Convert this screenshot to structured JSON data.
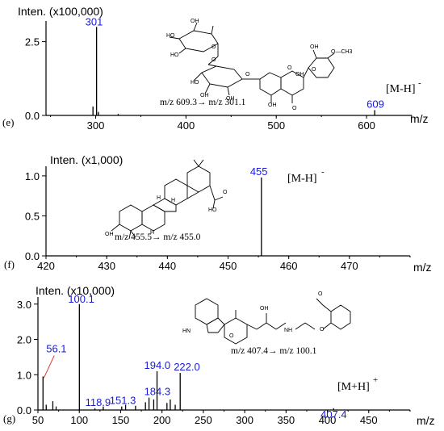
{
  "panels": [
    {
      "id": "e",
      "panel_letter": "(e)",
      "intensity_label": "Inten. (x100,000)",
      "x_unit": "m/z",
      "transition": "m/z 609.3→ m/z 301.1",
      "ion_label": "[M-H]",
      "ion_charge": "-"
    },
    {
      "id": "f",
      "panel_letter": "(f)",
      "intensity_label": "Inten. (x1,000)",
      "x_unit": "m/z",
      "transition": "m/z 455.5→ m/z 455.0",
      "ion_label": "[M-H]",
      "ion_charge": "-"
    },
    {
      "id": "g",
      "panel_letter": "(g)",
      "intensity_label": "Inten. (x10,000)",
      "x_unit": "m/z",
      "transition": "m/z 407.4→ m/z 100.1",
      "ion_label": "[M+H]",
      "ion_charge": "+"
    }
  ],
  "molecule_text": {
    "e": [
      "HO",
      "OH",
      "HO",
      "O",
      "O",
      "HO",
      "OH",
      "OH",
      "O",
      "O",
      "OH",
      "O",
      "OH",
      "O—CH3",
      "O",
      "OH"
    ],
    "f": [
      "H",
      "H",
      "H",
      "OH",
      "O",
      "HO"
    ],
    "g": [
      "HN",
      "O",
      "OH",
      "NH",
      "O",
      "O"
    ]
  },
  "chart_data": [
    {
      "type": "bar",
      "panel": "e",
      "xlabel": "m/z",
      "ylabel": "Inten. (x100,000)",
      "xlim": [
        245,
        650
      ],
      "ylim": [
        0,
        3.2
      ],
      "xticks": [
        300,
        400,
        500,
        600
      ],
      "yticks": [
        0.0,
        2.5
      ],
      "ytick_labels": [
        "0.0",
        "2.5"
      ],
      "peaks": [
        {
          "x": 301,
          "y": 3.0,
          "label": "301"
        },
        {
          "x": 297,
          "y": 0.3
        },
        {
          "x": 303,
          "y": 0.12
        },
        {
          "x": 325,
          "y": 0.05
        },
        {
          "x": 609,
          "y": 0.18,
          "label": "609"
        }
      ]
    },
    {
      "type": "bar",
      "panel": "f",
      "xlabel": "m/z",
      "ylabel": "Inten. (x1,000)",
      "xlim": [
        420,
        480
      ],
      "ylim": [
        0,
        1.12
      ],
      "xticks": [
        420,
        430,
        440,
        450,
        460,
        470
      ],
      "yticks": [
        0.0,
        0.5,
        1.0
      ],
      "ytick_labels": [
        "0.0",
        "0.5",
        "1.0"
      ],
      "peaks": [
        {
          "x": 455.5,
          "y": 0.98,
          "label": "455"
        }
      ]
    },
    {
      "type": "bar",
      "panel": "g",
      "xlabel": "m/z",
      "ylabel": "Inten. (x10,000)",
      "xlim": [
        50,
        500
      ],
      "ylim": [
        0,
        3.2
      ],
      "xticks": [
        50,
        100,
        150,
        200,
        250,
        300,
        350,
        400,
        450
      ],
      "yticks": [
        0.0,
        1.0,
        2.0,
        3.0
      ],
      "ytick_labels": [
        "0.0",
        "1.0",
        "2.0",
        "3.0"
      ],
      "peaks": [
        {
          "x": 56.1,
          "y": 0.95,
          "label": "56.1"
        },
        {
          "x": 60,
          "y": 0.15
        },
        {
          "x": 68,
          "y": 0.25
        },
        {
          "x": 72,
          "y": 0.1
        },
        {
          "x": 100.1,
          "y": 3.0,
          "label": "100.1"
        },
        {
          "x": 118.9,
          "y": 0.05,
          "label": "118.9"
        },
        {
          "x": 129,
          "y": 0.1
        },
        {
          "x": 151.3,
          "y": 0.1,
          "label": "151.3"
        },
        {
          "x": 156,
          "y": 0.15
        },
        {
          "x": 168,
          "y": 0.12
        },
        {
          "x": 180,
          "y": 0.22
        },
        {
          "x": 184.3,
          "y": 0.35,
          "label": "184.3"
        },
        {
          "x": 190,
          "y": 0.3
        },
        {
          "x": 194.0,
          "y": 1.1,
          "label": "194.0"
        },
        {
          "x": 206,
          "y": 0.2
        },
        {
          "x": 210,
          "y": 0.3
        },
        {
          "x": 216,
          "y": 0.15
        },
        {
          "x": 222.0,
          "y": 1.05,
          "label": "222.0"
        },
        {
          "x": 407.4,
          "y": 0.05,
          "label": "407.4"
        }
      ]
    }
  ]
}
